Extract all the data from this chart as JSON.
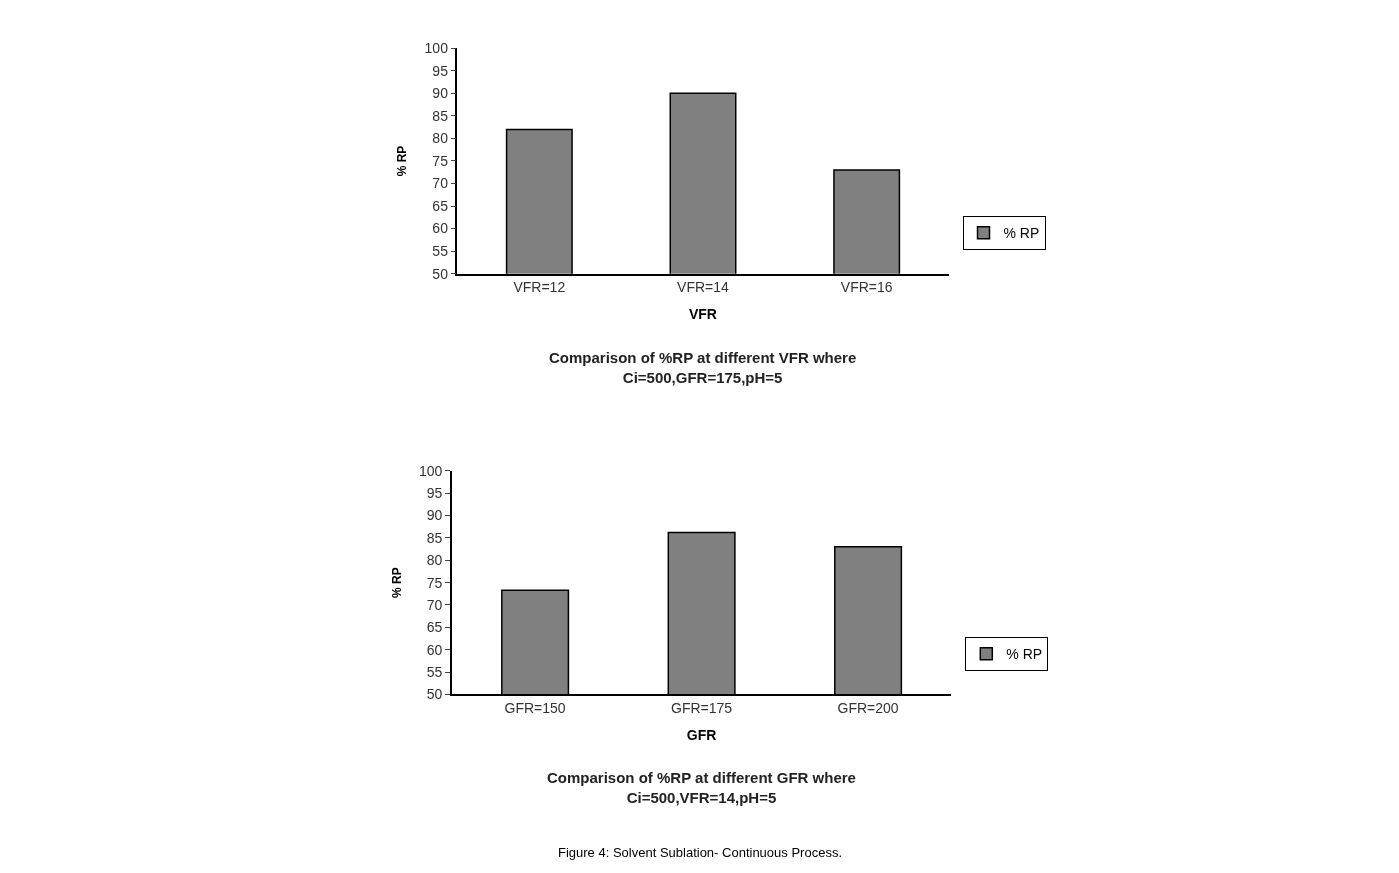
{
  "chart_data": [
    {
      "type": "bar",
      "title": "Comparison of %RP at different VFR where\nCi=500,GFR=175,pH=5",
      "xlabel": "VFR",
      "ylabel": "% RP",
      "categories": [
        "VFR=12",
        "VFR=14",
        "VFR=16"
      ],
      "series": [
        {
          "name": "% RP",
          "color": "#808080",
          "values": [
            82,
            90,
            73
          ]
        }
      ],
      "ylim": [
        50,
        100
      ],
      "yticks": [
        50,
        55,
        60,
        65,
        70,
        75,
        80,
        85,
        90,
        95,
        100
      ],
      "legend": "right"
    },
    {
      "type": "bar",
      "title": "Comparison of %RP at different GFR where\nCi=500,VFR=14,pH=5",
      "xlabel": "GFR",
      "ylabel": "% RP",
      "categories": [
        "GFR=150",
        "GFR=175",
        "GFR=200"
      ],
      "series": [
        {
          "name": "% RP",
          "color": "#808080",
          "values": [
            73.3,
            86.2,
            83
          ]
        }
      ],
      "ylim": [
        50,
        100
      ],
      "yticks": [
        50,
        55,
        60,
        65,
        70,
        75,
        80,
        85,
        90,
        95,
        100
      ],
      "legend": "right",
      "annotations": [
        "Figure 4: Solvent Sublation- Continuous Process."
      ]
    }
  ]
}
